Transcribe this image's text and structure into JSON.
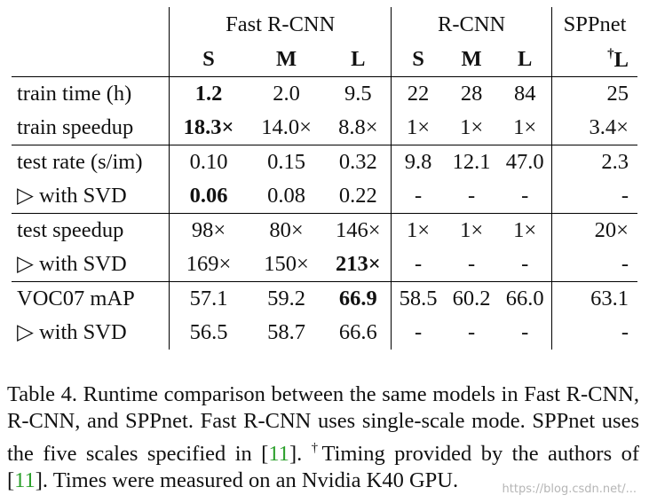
{
  "table": {
    "groups": [
      "Fast R-CNN",
      "R-CNN",
      "SPPnet"
    ],
    "subheaders": [
      "S",
      "M",
      "L",
      "S",
      "M",
      "L",
      "L"
    ],
    "spp_dagger": "†",
    "rows": [
      {
        "label": "train time (h)",
        "cells": [
          "1.2",
          "2.0",
          "9.5",
          "22",
          "28",
          "84",
          "25"
        ]
      },
      {
        "label": "train speedup",
        "cells": [
          "18.3×",
          "14.0×",
          "8.8×",
          "1×",
          "1×",
          "1×",
          "3.4×"
        ]
      },
      {
        "label": "test rate (s/im)",
        "cells": [
          "0.10",
          "0.15",
          "0.32",
          "9.8",
          "12.1",
          "47.0",
          "2.3"
        ]
      },
      {
        "label": "▷ with SVD",
        "cells": [
          "0.06",
          "0.08",
          "0.22",
          "-",
          "-",
          "-",
          "-"
        ]
      },
      {
        "label": "test speedup",
        "cells": [
          "98×",
          "80×",
          "146×",
          "1×",
          "1×",
          "1×",
          "20×"
        ]
      },
      {
        "label": "▷ with SVD",
        "cells": [
          "169×",
          "150×",
          "213×",
          "-",
          "-",
          "-",
          "-"
        ]
      },
      {
        "label": "VOC07 mAP",
        "cells": [
          "57.1",
          "59.2",
          "66.9",
          "58.5",
          "60.2",
          "66.0",
          "63.1"
        ]
      },
      {
        "label": "▷ with SVD",
        "cells": [
          "56.5",
          "58.7",
          "66.6",
          "-",
          "-",
          "-",
          "-"
        ]
      }
    ]
  },
  "caption": {
    "part1": "Table 4. Runtime comparison between the same models in Fast R-CNN, R-CNN, and SPPnet. Fast R-CNN uses single-scale mode. SPPnet uses the five scales specified in [",
    "ref1": "11",
    "part2": "]. ",
    "dagger": "†",
    "part3": "Timing provided by the authors of [",
    "ref2": "11",
    "part4": "]. Times were measured on an Nvidia K40 GPU."
  },
  "watermark": "https://blog.csdn.net/..."
}
